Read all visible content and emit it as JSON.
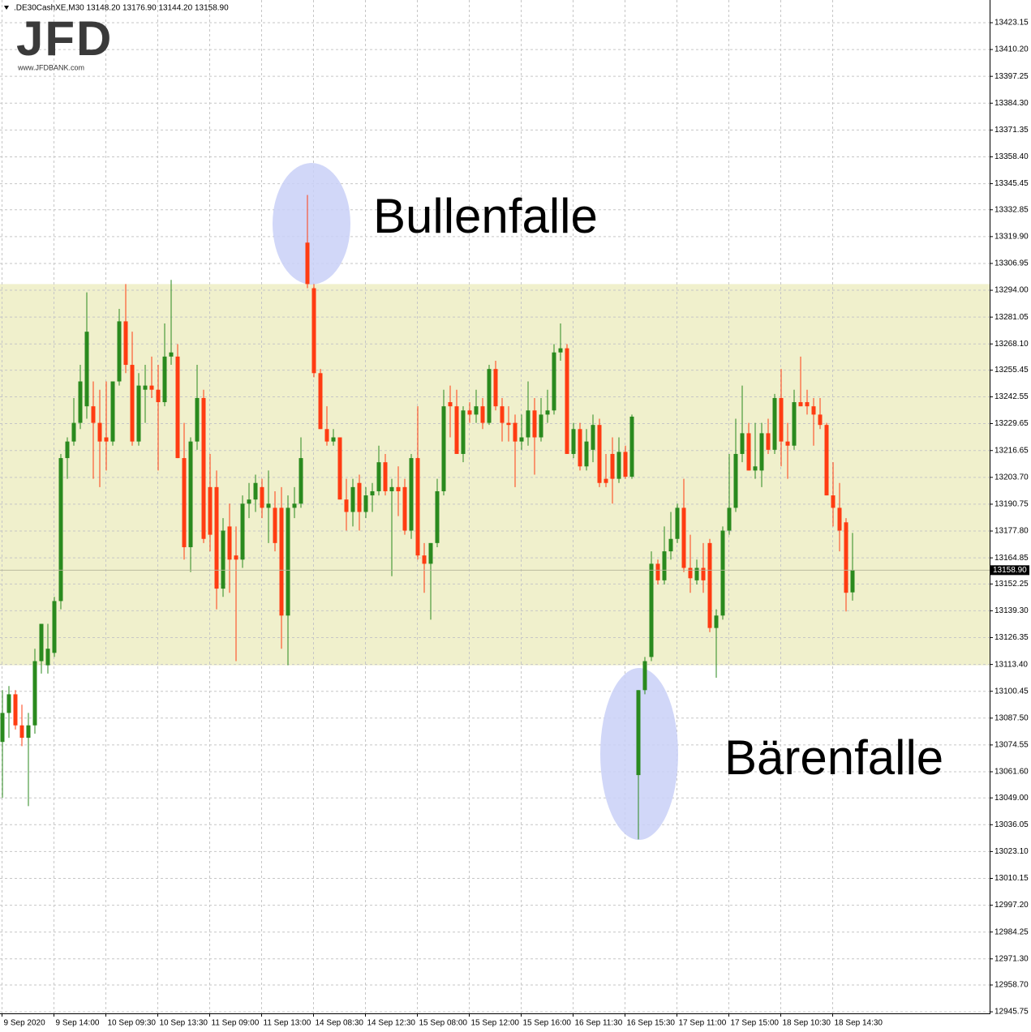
{
  "chart_data": {
    "type": "candlestick",
    "title": ".DE30CashXE,M30  13148.20 13176.90 13144.20 13158.90",
    "logo": "JFD",
    "logo_url": "www.JFDBANK.com",
    "annotations": [
      "Bullenfalle",
      "Bärenfalle"
    ],
    "categories": [
      "9 Sep 2020",
      null,
      null,
      null,
      null,
      null,
      null,
      null,
      "9 Sep 14:00",
      null,
      null,
      null,
      null,
      null,
      null,
      null,
      "10 Sep 09:30",
      null,
      null,
      null,
      null,
      null,
      null,
      null,
      "10 Sep 13:30",
      null,
      null,
      null,
      null,
      null,
      null,
      null,
      "11 Sep 09:00",
      null,
      null,
      null,
      null,
      null,
      null,
      null,
      "11 Sep 13:00",
      null,
      null,
      null,
      null,
      null,
      null,
      null,
      "14 Sep 08:30",
      null,
      null,
      null,
      null,
      null,
      null,
      null,
      "14 Sep 12:30",
      null,
      null,
      null,
      null,
      null,
      null,
      null,
      "15 Sep 08:00",
      null,
      null,
      null,
      null,
      null,
      null,
      null,
      "15 Sep 12:00",
      null,
      null,
      null,
      null,
      null,
      null,
      null,
      "15 Sep 16:00",
      null,
      null,
      null,
      null,
      null,
      null,
      null,
      "16 Sep 11:30",
      null,
      null,
      null,
      null,
      null,
      null,
      null,
      "16 Sep 15:30",
      null,
      null,
      null,
      null,
      null,
      null,
      null,
      "17 Sep 11:00",
      null,
      null,
      null,
      null,
      null,
      null,
      null,
      "17 Sep 15:00",
      null,
      null,
      null,
      null,
      null,
      null,
      null,
      "18 Sep 10:30",
      null,
      null,
      null,
      null,
      null,
      null,
      null,
      "18 Sep 14:30",
      null,
      null,
      null
    ],
    "open": [
      13076,
      13090,
      13099,
      13084,
      13078,
      13084,
      13115,
      13113,
      13119,
      13144,
      13213,
      13221,
      13230,
      13238,
      13238,
      13230,
      13223,
      13221,
      13250,
      13279,
      13258,
      13221,
      13246,
      13248,
      13246,
      13240,
      13262,
      13262,
      13213,
      13170,
      13221,
      13242,
      13199,
      13199,
      13150,
      13180,
      13166,
      13164,
      13191,
      13193,
      13199,
      13189,
      13189,
      13189,
      13137,
      13189,
      13191,
      13317,
      13295,
      13254,
      13227,
      13221,
      13223,
      13193,
      13187,
      13201,
      13187,
      13195,
      13197,
      13211,
      13197,
      13199,
      13199,
      13178,
      13213,
      13166,
      13162,
      13172,
      13197,
      13240,
      13238,
      13215,
      13236,
      13234,
      13238,
      13230,
      13256,
      13238,
      13230,
      13230,
      13221,
      13223,
      13236,
      13223,
      13234,
      13236,
      13264,
      13266,
      13215,
      13227,
      13209,
      13217,
      13229,
      13203,
      13215,
      13203,
      13216,
      13204,
      13060,
      13101,
      13117,
      13162,
      13154,
      13168,
      13174,
      13189,
      13160,
      13154,
      13160,
      13172,
      13131,
      13137,
      13178,
      13189,
      13215,
      13225,
      13207,
      13207,
      13225,
      13217,
      13242,
      13221,
      13219,
      13240,
      13240,
      13238,
      13234,
      13229,
      13195,
      13189,
      13182,
      13148.2
    ],
    "high": [
      13101,
      13103,
      13101,
      13094,
      13090,
      13121,
      13133,
      13133,
      13146,
      13215,
      13223,
      13242,
      13258,
      13293,
      13250,
      13246,
      13250,
      13250,
      13285,
      13297,
      13274,
      13254,
      13258,
      13262,
      13258,
      13278,
      13299,
      13268,
      13230,
      13223,
      13258,
      13246,
      13215,
      13207,
      13184,
      13191,
      13180,
      13195,
      13201,
      13205,
      13203,
      13207,
      13197,
      13199,
      13195,
      13199,
      13223,
      13340,
      13297,
      13256,
      13238,
      13227,
      13223,
      13203,
      13203,
      13205,
      13199,
      13201,
      13219,
      13215,
      13203,
      13209,
      13203,
      13215,
      13238,
      13172,
      13172,
      13203,
      13246,
      13248,
      13246,
      13238,
      13240,
      13246,
      13242,
      13258,
      13260,
      13242,
      13238,
      13234,
      13234,
      13250,
      13242,
      13242,
      13246,
      13268,
      13278,
      13268,
      13230,
      13230,
      13227,
      13234,
      13232,
      13215,
      13223,
      13223,
      13219,
      13234,
      13101,
      13117,
      13168,
      13164,
      13180,
      13187,
      13191,
      13203,
      13176,
      13164,
      13172,
      13174,
      13140,
      13180,
      13215,
      13232,
      13248,
      13230,
      13230,
      13230,
      13232,
      13244,
      13256,
      13230,
      13246,
      13262,
      13246,
      13242,
      13242,
      13230,
      13211,
      13201,
      13184,
      13176.9
    ],
    "low": [
      13049,
      13078,
      13082,
      13074,
      13045,
      13080,
      13109,
      13109,
      13117,
      13140,
      13203,
      13219,
      13227,
      13232,
      13203,
      13199,
      13207,
      13219,
      13248,
      13254,
      13219,
      13219,
      13230,
      13242,
      13207,
      13238,
      13258,
      13213,
      13164,
      13158,
      13217,
      13172,
      13168,
      13140,
      13146,
      13148,
      13115,
      13160,
      13184,
      13187,
      13184,
      13172,
      13168,
      13121,
      13113,
      13184,
      13189,
      13295,
      13252,
      13227,
      13219,
      13219,
      13193,
      13178,
      13180,
      13178,
      13184,
      13187,
      13195,
      13195,
      13156,
      13185,
      13176,
      13174,
      13164,
      13148,
      13135,
      13170,
      13195,
      13223,
      13215,
      13211,
      13230,
      13230,
      13227,
      13229,
      13236,
      13221,
      13221,
      13199,
      13217,
      13219,
      13205,
      13221,
      13230,
      13234,
      13260,
      13215,
      13213,
      13207,
      13207,
      13211,
      13199,
      13199,
      13191,
      13201,
      13203,
      13203,
      13029,
      13099,
      13115,
      13152,
      13152,
      13164,
      13172,
      13158,
      13148,
      13152,
      13148,
      13129,
      13107,
      13135,
      13176,
      13187,
      13211,
      13207,
      13203,
      13199,
      13215,
      13215,
      13209,
      13203,
      13217,
      13238,
      13234,
      13219,
      13227,
      13195,
      13180,
      13168,
      13139,
      13144.2
    ],
    "close": [
      13090,
      13099,
      13084,
      13078,
      13084,
      13115,
      13133,
      13121,
      13144,
      13213,
      13221,
      13230,
      13250,
      13274,
      13230,
      13221,
      13221,
      13250,
      13279,
      13258,
      13221,
      13248,
      13248,
      13246,
      13240,
      13262,
      13264,
      13213,
      13170,
      13221,
      13242,
      13174,
      13176,
      13150,
      13178,
      13164,
      13164,
      13191,
      13193,
      13201,
      13189,
      13191,
      13172,
      13137,
      13189,
      13191,
      13213,
      13297,
      13254,
      13227,
      13221,
      13223,
      13193,
      13187,
      13199,
      13187,
      13195,
      13197,
      13211,
      13197,
      13199,
      13197,
      13178,
      13213,
      13166,
      13162,
      13172,
      13197,
      13238,
      13238,
      13215,
      13236,
      13234,
      13238,
      13230,
      13256,
      13238,
      13230,
      13229,
      13221,
      13223,
      13236,
      13223,
      13234,
      13236,
      13264,
      13266,
      13215,
      13227,
      13209,
      13221,
      13229,
      13201,
      13201,
      13203,
      13216,
      13204,
      13233,
      13101,
      13115,
      13162,
      13154,
      13168,
      13174,
      13189,
      13160,
      13155,
      13160,
      13154,
      13131,
      13137,
      13178,
      13189,
      13215,
      13225,
      13207,
      13209,
      13225,
      13217,
      13242,
      13221,
      13219,
      13240,
      13238,
      13238,
      13234,
      13229,
      13195,
      13189,
      13178,
      13148,
      13158.9
    ],
    "up_color": "#2a8a1e",
    "down_color": "#ff3c12",
    "ylim": [
      12945,
      13434.1
    ],
    "yticks": [
      13423.15,
      {
        "value": 13410.2,
        "label": "13410.20"
      },
      13397.25,
      {
        "value": 13384.3,
        "label": "13384.30"
      },
      13371.35,
      {
        "value": 13358.4,
        "label": "13358.40"
      },
      13345.45,
      13332.85,
      {
        "value": 13319.9,
        "label": "13319.90"
      },
      13306.95,
      {
        "value": 13294,
        "label": "13294.00"
      },
      13281.05,
      {
        "value": 13268.1,
        "label": "13268.10"
      },
      13255.45,
      13242.55,
      13229.65,
      13216.65,
      {
        "value": 13203.7,
        "label": "13203.70"
      },
      13190.75,
      {
        "value": 13177.8,
        "label": "13177.80"
      },
      13164.85,
      13152.25,
      {
        "value": 13139.3,
        "label": "13139.30"
      },
      13126.35,
      {
        "value": 13113.4,
        "label": "13113.40"
      },
      13100.45,
      {
        "value": 13087.5,
        "label": "13087.50"
      },
      13074.55,
      {
        "value": 13061.6,
        "label": "13061.60"
      },
      {
        "value": 13049,
        "label": "13049.00"
      },
      13036.05,
      {
        "value": 13023.1,
        "label": "13023.10"
      },
      13010.15,
      {
        "value": 12997.2,
        "label": "12997.20"
      },
      12984.25,
      {
        "value": 12971.3,
        "label": "12971.30"
      },
      {
        "value": 12958.7,
        "label": "12958.70"
      },
      12945.75
    ],
    "grid": true,
    "last_price": {
      "value": 13158.9,
      "label": "13158.90"
    },
    "zone": {
      "range": [
        13113,
        13297
      ],
      "color": "#f0f0cc"
    }
  }
}
